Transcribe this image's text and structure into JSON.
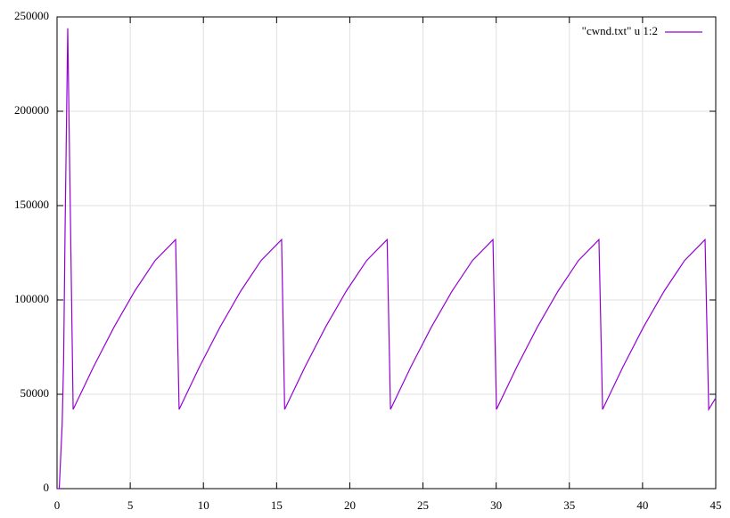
{
  "chart_data": {
    "type": "line",
    "x": [
      0,
      0.15,
      0.25,
      0.35,
      0.45,
      0.55,
      0.73,
      1.1,
      2.5,
      3.9,
      5.3,
      6.7,
      8.1,
      8.34,
      9.74,
      11.14,
      12.54,
      13.94,
      15.34,
      15.55,
      16.95,
      18.35,
      19.75,
      21.15,
      22.55,
      22.78,
      24.18,
      25.58,
      26.98,
      28.38,
      29.78,
      30.02,
      31.42,
      32.82,
      34.22,
      35.62,
      37.02,
      37.27,
      38.67,
      40.07,
      41.47,
      42.87,
      44.27,
      44.52,
      45
    ],
    "series": [
      {
        "name": "\"cwnd.txt\" u 1:2",
        "color": "#9400d3",
        "values": [
          0,
          0,
          17000,
          34000,
          68000,
          138000,
          244000,
          42000,
          64700,
          85700,
          104600,
          120900,
          132000,
          42000,
          64700,
          85700,
          104600,
          120900,
          132000,
          42000,
          64700,
          85700,
          104600,
          120900,
          132000,
          42000,
          64700,
          85700,
          104600,
          120900,
          132000,
          42000,
          64700,
          85700,
          104600,
          120900,
          132000,
          42000,
          64700,
          85700,
          104600,
          120900,
          132000,
          42000,
          48000
        ]
      }
    ],
    "xlim": [
      0,
      45
    ],
    "xticks": [
      0,
      5,
      10,
      15,
      20,
      25,
      30,
      35,
      40,
      45
    ],
    "ylim": [
      0,
      250000
    ],
    "yticks": [
      0,
      50000,
      100000,
      150000,
      200000,
      250000
    ],
    "grid": true,
    "legend": "top-right"
  }
}
